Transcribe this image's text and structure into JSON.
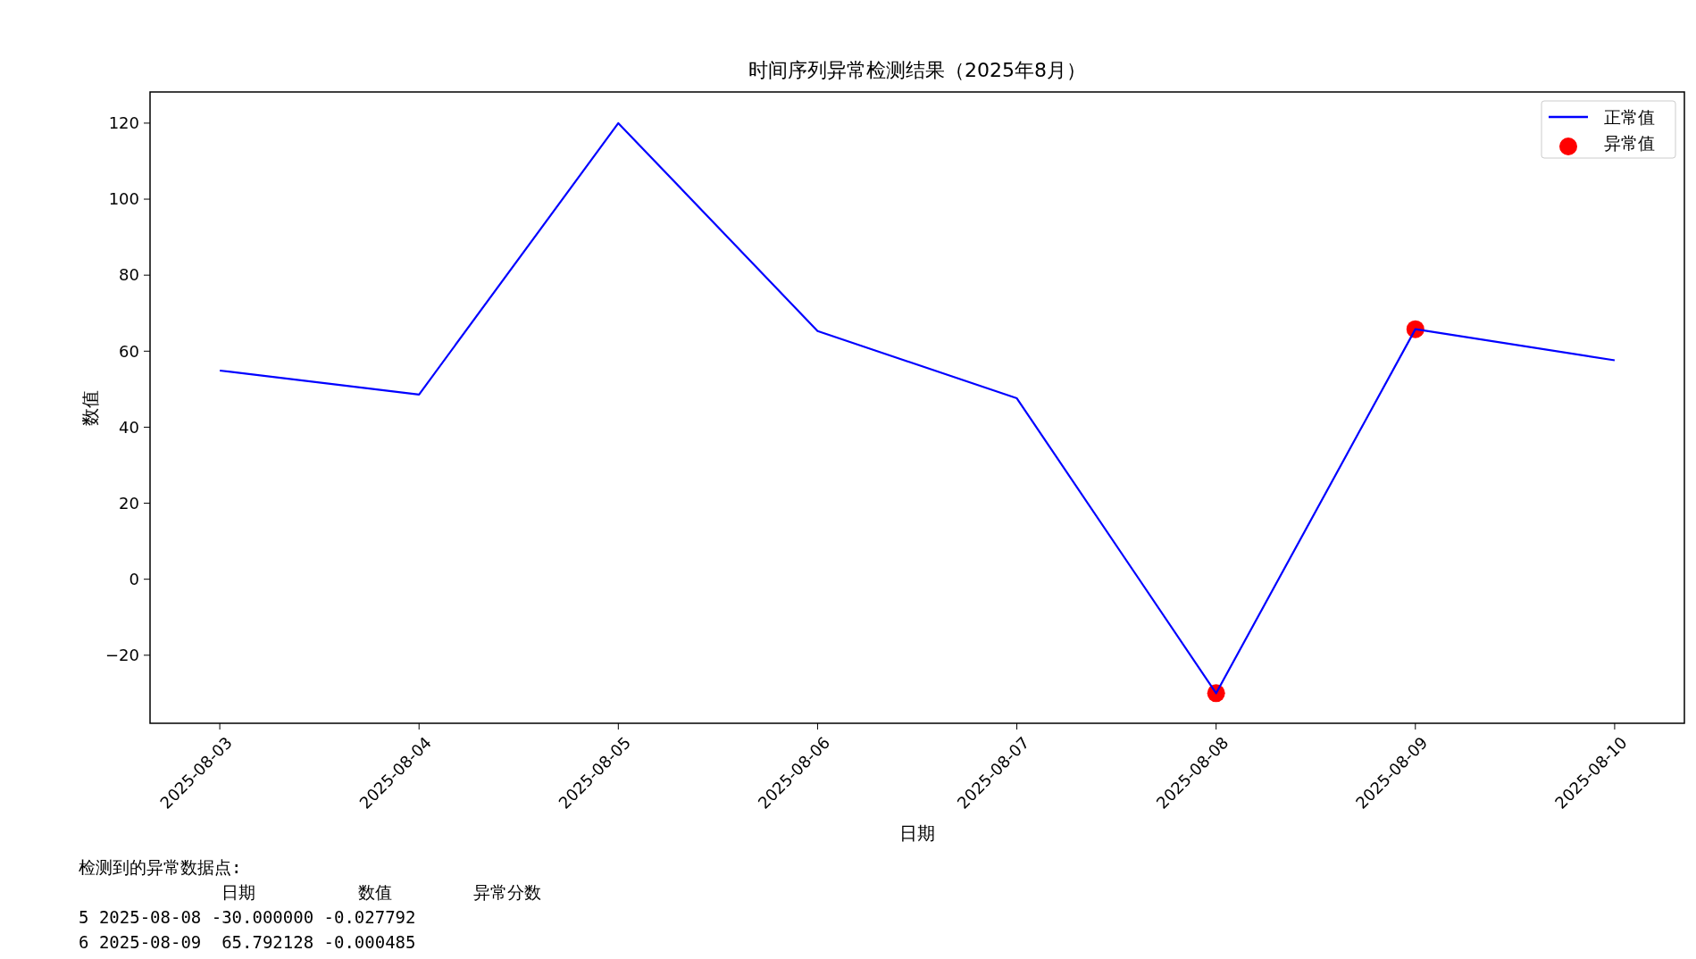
{
  "chart_data": {
    "type": "line",
    "title": "时间序列异常检测结果（2025年8月）",
    "xlabel": "日期",
    "ylabel": "数值",
    "categories": [
      "2025-08-03",
      "2025-08-04",
      "2025-08-05",
      "2025-08-06",
      "2025-08-07",
      "2025-08-08",
      "2025-08-09",
      "2025-08-10"
    ],
    "series": [
      {
        "name": "正常值",
        "color": "#0000ff",
        "marker": "none",
        "values": [
          54.9,
          48.6,
          120,
          65.3,
          47.6,
          -30,
          65.792128,
          57.6
        ]
      },
      {
        "name": "异常值",
        "type": "scatter",
        "color": "#ff0000",
        "marker": "circle",
        "values": [
          null,
          null,
          null,
          null,
          null,
          -30,
          65.792128,
          null
        ]
      }
    ],
    "ylim": [
      -37.9,
      128.2
    ],
    "yticks": [
      -20,
      0,
      20,
      40,
      60,
      80,
      100,
      120
    ],
    "grid": false,
    "legend": "top right",
    "annotations": [
      "检测到的异常数据点:",
      "              日期          数值        异常分数",
      "5 2025-08-08 -30.000000 -0.027792",
      "6 2025-08-09  65.792128 -0.000485"
    ]
  }
}
